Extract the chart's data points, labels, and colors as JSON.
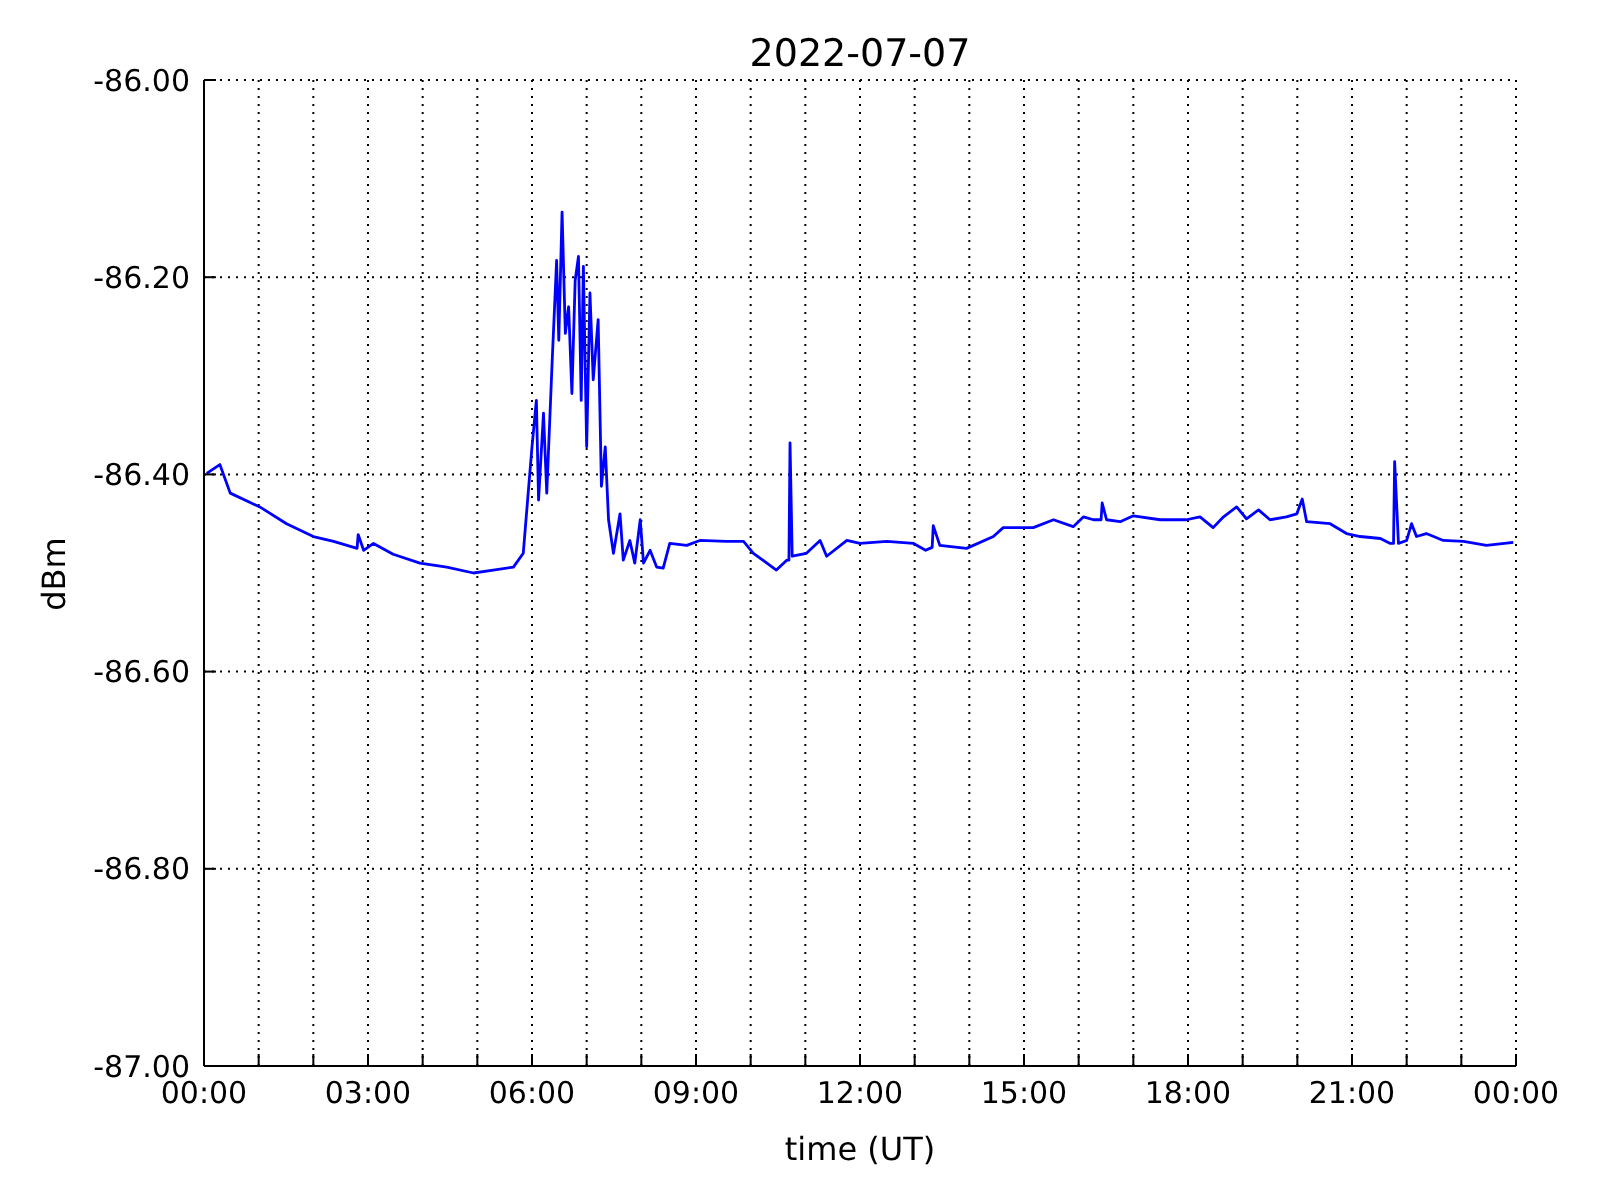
{
  "chart_data": {
    "type": "line",
    "title": "2022-07-07",
    "xlabel": "time (UT)",
    "ylabel": "dBm",
    "color": "#0000ff",
    "grid": true,
    "xlim": [
      0,
      24
    ],
    "ylim": [
      -87,
      -86
    ],
    "xticks": [
      {
        "value": 0,
        "label": "00:00"
      },
      {
        "value": 1,
        "label": null
      },
      {
        "value": 2,
        "label": null
      },
      {
        "value": 3,
        "label": "03:00"
      },
      {
        "value": 4,
        "label": null
      },
      {
        "value": 5,
        "label": null
      },
      {
        "value": 6,
        "label": "06:00"
      },
      {
        "value": 7,
        "label": null
      },
      {
        "value": 8,
        "label": null
      },
      {
        "value": 9,
        "label": "09:00"
      },
      {
        "value": 10,
        "label": null
      },
      {
        "value": 11,
        "label": null
      },
      {
        "value": 12,
        "label": "12:00"
      },
      {
        "value": 13,
        "label": null
      },
      {
        "value": 14,
        "label": null
      },
      {
        "value": 15,
        "label": "15:00"
      },
      {
        "value": 16,
        "label": null
      },
      {
        "value": 17,
        "label": null
      },
      {
        "value": 18,
        "label": "18:00"
      },
      {
        "value": 19,
        "label": null
      },
      {
        "value": 20,
        "label": null
      },
      {
        "value": 21,
        "label": "21:00"
      },
      {
        "value": 22,
        "label": null
      },
      {
        "value": 23,
        "label": null
      },
      {
        "value": 24,
        "label": "00:00"
      }
    ],
    "yticks": [
      {
        "value": -87,
        "label": "-87.00"
      },
      {
        "value": -86.8,
        "label": "-86.80"
      },
      {
        "value": -86.6,
        "label": "-86.60"
      },
      {
        "value": -86.4,
        "label": "-86.40"
      },
      {
        "value": -86.2,
        "label": "-86.20"
      },
      {
        "value": -86,
        "label": "-86.00"
      }
    ],
    "x": [
      0.05,
      0.29,
      0.48,
      1.02,
      1.51,
      2.0,
      2.37,
      2.8,
      2.82,
      2.92,
      3.1,
      3.46,
      3.95,
      4.44,
      4.93,
      5.29,
      5.66,
      5.84,
      5.93,
      6.0,
      6.08,
      6.12,
      6.21,
      6.27,
      6.37,
      6.45,
      6.49,
      6.55,
      6.61,
      6.67,
      6.73,
      6.79,
      6.85,
      6.9,
      6.94,
      7.0,
      7.06,
      7.12,
      7.21,
      7.27,
      7.34,
      7.4,
      7.49,
      7.61,
      7.67,
      7.79,
      7.88,
      7.98,
      8.04,
      8.16,
      8.28,
      8.4,
      8.52,
      8.83,
      9.07,
      9.56,
      9.87,
      10.05,
      10.47,
      10.66,
      10.7,
      10.72,
      10.76,
      11.02,
      11.27,
      11.39,
      11.76,
      12.0,
      12.49,
      12.98,
      13.2,
      13.32,
      13.34,
      13.46,
      13.95,
      14.44,
      14.62,
      15.17,
      15.54,
      15.9,
      16.09,
      16.27,
      16.41,
      16.43,
      16.51,
      16.76,
      17.0,
      17.49,
      17.97,
      18.22,
      18.46,
      18.65,
      18.89,
      19.07,
      19.29,
      19.5,
      19.8,
      19.99,
      20.09,
      20.17,
      20.6,
      20.9,
      21.15,
      21.52,
      21.7,
      21.76,
      21.78,
      21.85,
      22.0,
      22.09,
      22.18,
      22.36,
      22.67,
      23.04,
      23.46,
      23.95
    ],
    "values": [
      -86.399,
      -86.39,
      -86.419,
      -86.433,
      -86.45,
      -86.463,
      -86.468,
      -86.475,
      -86.461,
      -86.477,
      -86.47,
      -86.481,
      -86.49,
      -86.494,
      -86.5,
      -86.497,
      -86.494,
      -86.48,
      -86.419,
      -86.372,
      -86.325,
      -86.426,
      -86.338,
      -86.419,
      -86.284,
      -86.183,
      -86.264,
      -86.134,
      -86.257,
      -86.23,
      -86.318,
      -86.203,
      -86.179,
      -86.325,
      -86.189,
      -86.372,
      -86.216,
      -86.304,
      -86.243,
      -86.412,
      -86.372,
      -86.446,
      -86.48,
      -86.44,
      -86.487,
      -86.467,
      -86.49,
      -86.446,
      -86.49,
      -86.477,
      -86.494,
      -86.495,
      -86.47,
      -86.472,
      -86.467,
      -86.468,
      -86.468,
      -86.48,
      -86.497,
      -86.487,
      -86.487,
      -86.368,
      -86.483,
      -86.48,
      -86.467,
      -86.483,
      -86.467,
      -86.47,
      -86.468,
      -86.47,
      -86.477,
      -86.474,
      -86.452,
      -86.472,
      -86.475,
      -86.463,
      -86.454,
      -86.454,
      -86.446,
      -86.453,
      -86.443,
      -86.446,
      -86.446,
      -86.429,
      -86.446,
      -86.448,
      -86.442,
      -86.446,
      -86.446,
      -86.443,
      -86.454,
      -86.443,
      -86.433,
      -86.445,
      -86.436,
      -86.446,
      -86.443,
      -86.44,
      -86.425,
      -86.448,
      -86.45,
      -86.46,
      -86.463,
      -86.465,
      -86.47,
      -86.47,
      -86.387,
      -86.47,
      -86.467,
      -86.45,
      -86.463,
      -86.46,
      -86.467,
      -86.468,
      -86.472,
      -86.469
    ]
  }
}
